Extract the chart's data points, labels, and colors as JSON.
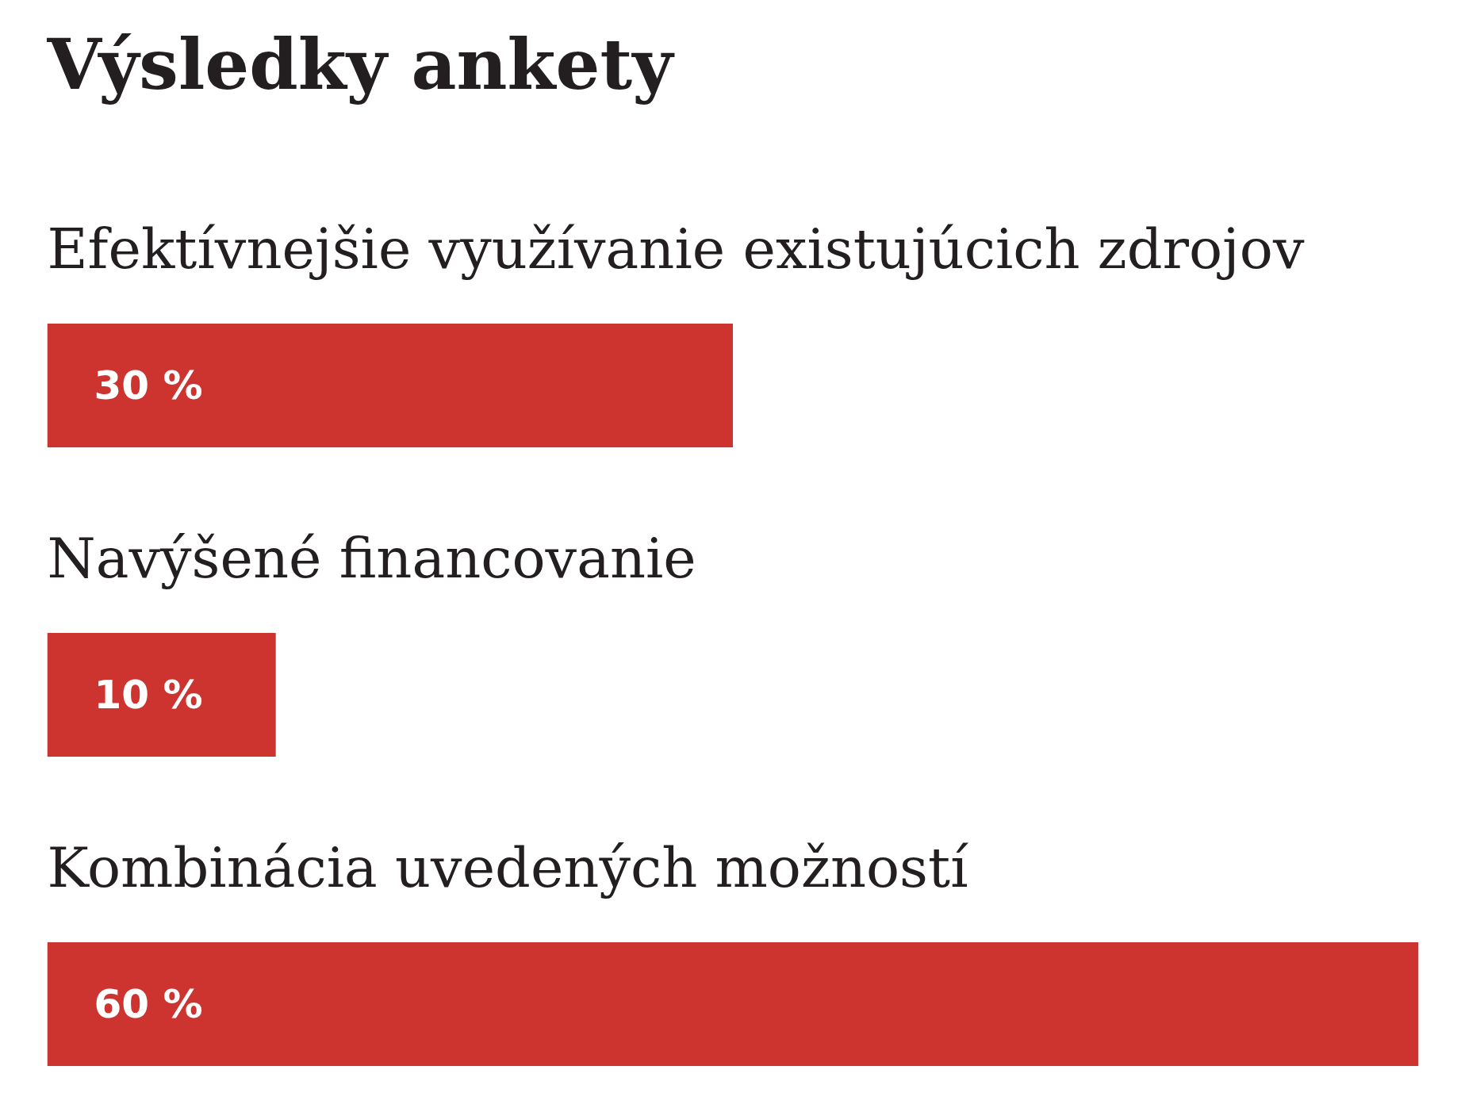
{
  "chart_data": {
    "type": "bar",
    "orientation": "horizontal",
    "title": "Výsledky ankety",
    "categories": [
      "Efektívnejšie využívanie existujúcich zdrojov",
      "Navýšené financovanie",
      "Kombinácia uvedených možností"
    ],
    "values": [
      30,
      10,
      60
    ],
    "color": "#cd3430",
    "value_labels": [
      "30 %",
      "10 %",
      "60 %"
    ]
  }
}
